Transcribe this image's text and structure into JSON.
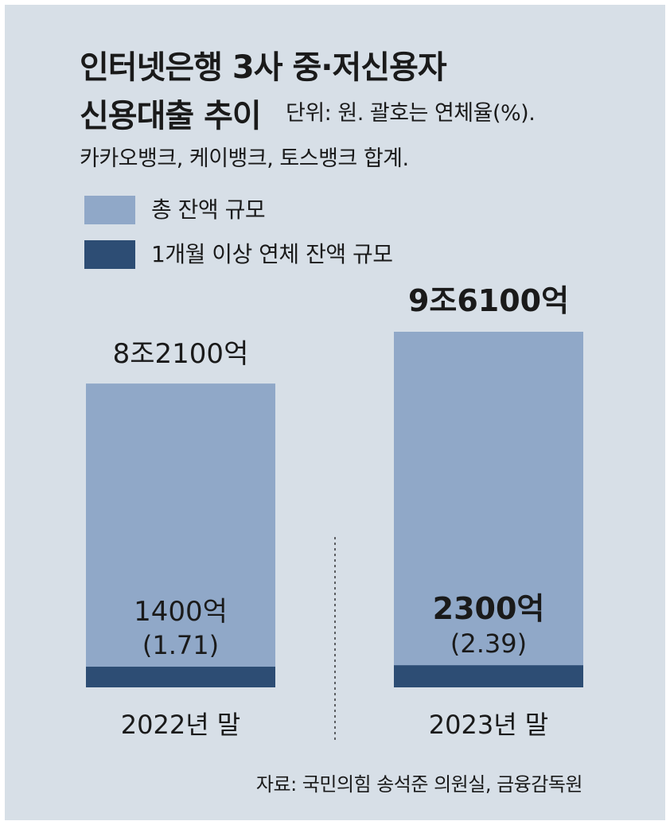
{
  "title_line1": "인터넷은행 3사 중·저신용자",
  "title_line2": "신용대출 추이",
  "unit_note": "단위: 원. 괄호는 연체율(%).",
  "subtitle": "카카오뱅크, 케이뱅크, 토스뱅크 합계.",
  "source": "자료: 국민의힘 송석준 의원실, 금융감독원",
  "colors": {
    "total": "#90a8c8",
    "overdue": "#2d4d74",
    "background": "#d7dfe7"
  },
  "chart_data": {
    "type": "bar",
    "categories": [
      "2022년 말",
      "2023년 말"
    ],
    "series": [
      {
        "name": "총 잔액 규모",
        "values": [
          82100,
          96100
        ],
        "labels": [
          "8조2100억",
          "9조6100억"
        ]
      },
      {
        "name": "1개월 이상 연체 잔액 규모",
        "values": [
          1400,
          2300
        ],
        "labels": [
          "1400억",
          "2300억"
        ],
        "rate_labels": [
          "(1.71)",
          "(2.39)"
        ]
      }
    ],
    "unit": "억원",
    "legend": "top-left",
    "grid": false
  }
}
